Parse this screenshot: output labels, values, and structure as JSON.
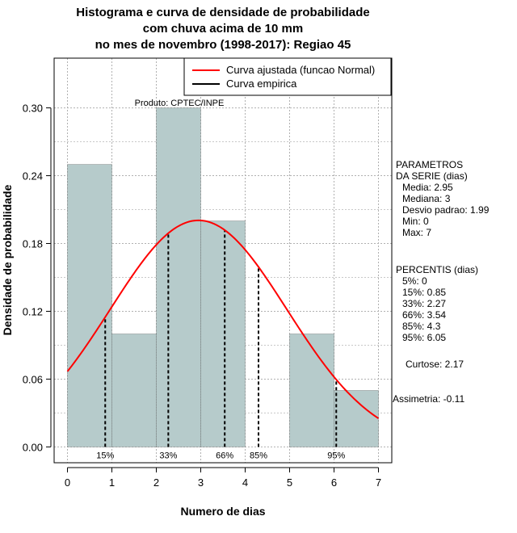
{
  "chart_data": {
    "type": "bar",
    "title_lines": [
      "Histograma e curva de densidade de probabilidade",
      "com chuva acima de 10 mm",
      "no mes de novembro (1998-2017): Regiao 45"
    ],
    "xlabel": "Numero de dias",
    "ylabel": "Densidade de probabilidade",
    "xlim": [
      -0.3,
      7.3
    ],
    "ylim": [
      -0.014,
      0.344
    ],
    "x_ticks": [
      0,
      1,
      2,
      3,
      4,
      5,
      6,
      7
    ],
    "y_ticks": [
      0.0,
      0.06,
      0.12,
      0.18,
      0.24,
      0.3
    ],
    "y_tick_labels": [
      "0.00",
      "0.06",
      "0.12",
      "0.18",
      "0.24",
      "0.30"
    ],
    "grid": true,
    "bins": [
      {
        "from": 0,
        "to": 1,
        "density": 0.25
      },
      {
        "from": 1,
        "to": 2,
        "density": 0.1
      },
      {
        "from": 2,
        "to": 3,
        "density": 0.3
      },
      {
        "from": 3,
        "to": 4,
        "density": 0.2
      },
      {
        "from": 4,
        "to": 5,
        "density": 0.0
      },
      {
        "from": 5,
        "to": 6,
        "density": 0.1
      },
      {
        "from": 6,
        "to": 7,
        "density": 0.05
      }
    ],
    "bar_color": "#b6cbcb",
    "fitted_curve": {
      "name": "Curva ajustada (funcao Normal)",
      "distribution": "normal",
      "mean": 2.95,
      "sd": 1.99,
      "x_range": [
        0,
        7
      ],
      "color": "#ff0000"
    },
    "empirical_curve": {
      "name": "Curva empirica",
      "color": "#000000"
    },
    "legend_position": "top-right",
    "percentile_lines": [
      {
        "label": "15%",
        "x": 0.85
      },
      {
        "label": "33%",
        "x": 2.27
      },
      {
        "label": "66%",
        "x": 3.54
      },
      {
        "label": "85%",
        "x": 4.3
      },
      {
        "label": "95%",
        "x": 6.05
      }
    ],
    "annotation": "Produto: CPTEC/INPE",
    "parametros": {
      "header": [
        "PARAMETROS",
        "DA SERIE (dias)"
      ],
      "lines": [
        "Media: 2.95",
        "Mediana: 3",
        "Desvio padrao: 1.99",
        "Min: 0",
        "Max: 7"
      ]
    },
    "percentis": {
      "header": "PERCENTIS (dias)",
      "lines": [
        "5%: 0",
        "15%: 0.85",
        "33%: 2.27",
        "66%: 3.54",
        "85%: 4.3",
        "95%: 6.05"
      ]
    },
    "shape_stats": [
      "Curtose: 2.17",
      "Assimetria: -0.11"
    ]
  }
}
